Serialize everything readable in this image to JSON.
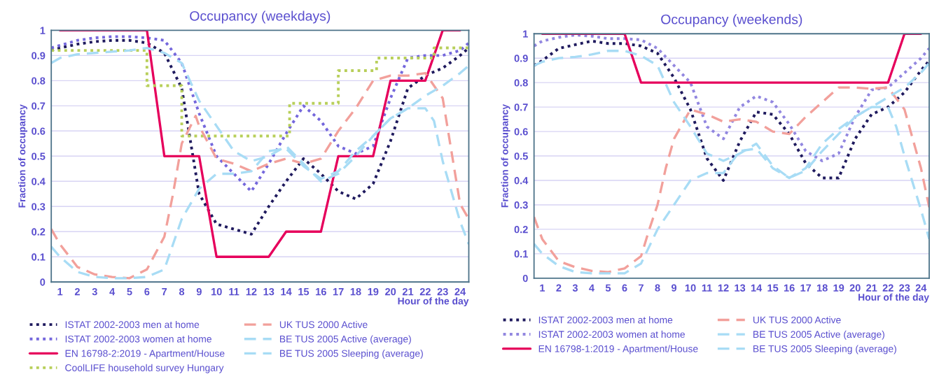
{
  "chart_data": [
    {
      "type": "line",
      "title": "Occupancy (weekdays)",
      "xlabel": "Hour of the day",
      "ylabel": "Fraction of occupancy",
      "xlim": [
        0.5,
        24.5
      ],
      "xticks": [
        1,
        2,
        3,
        4,
        5,
        6,
        7,
        8,
        9,
        10,
        11,
        12,
        13,
        14,
        15,
        16,
        17,
        18,
        19,
        20,
        21,
        22,
        23,
        24
      ],
      "ylim": [
        0,
        1
      ],
      "yticks": [
        0,
        0.1,
        0.2,
        0.3,
        0.4,
        0.5,
        0.6,
        0.7,
        0.8,
        0.9,
        1
      ],
      "grid": "y",
      "legend": "bottom",
      "series": [
        {
          "name": "ISTAT 2002-2003 men at home",
          "color": "#1f1a5e",
          "line_style": "dotted",
          "x": [
            0.5,
            1,
            2,
            3,
            4,
            5,
            6,
            7,
            8,
            9,
            10,
            11,
            12,
            13,
            14,
            15,
            16,
            17,
            18,
            19,
            20,
            21,
            22,
            23,
            24,
            24.5
          ],
          "values": [
            0.92,
            0.93,
            0.945,
            0.955,
            0.96,
            0.96,
            0.95,
            0.91,
            0.77,
            0.35,
            0.23,
            0.21,
            0.19,
            0.3,
            0.4,
            0.49,
            0.43,
            0.36,
            0.33,
            0.39,
            0.56,
            0.77,
            0.82,
            0.85,
            0.9,
            0.93
          ]
        },
        {
          "name": "ISTAT 2002-2003 women at home",
          "color": "#7467dc",
          "line_style": "dotted",
          "x": [
            0.5,
            1,
            2,
            3,
            4,
            5,
            6,
            7,
            8,
            9,
            10,
            11,
            12,
            13,
            14,
            15,
            16,
            17,
            18,
            19,
            20,
            21,
            22,
            23,
            24,
            24.5
          ],
          "values": [
            0.93,
            0.94,
            0.96,
            0.97,
            0.975,
            0.975,
            0.97,
            0.96,
            0.87,
            0.67,
            0.5,
            0.43,
            0.36,
            0.47,
            0.59,
            0.7,
            0.64,
            0.54,
            0.51,
            0.54,
            0.73,
            0.89,
            0.9,
            0.9,
            0.92,
            0.95
          ]
        },
        {
          "name": "EN 16798-2:2019 - Apartment/House",
          "color": "#e6005c",
          "line_style": "solid",
          "x": [
            1,
            2,
            3,
            4,
            5,
            6,
            7,
            8,
            9,
            10,
            11,
            12,
            13,
            14,
            15,
            16,
            17,
            18,
            19,
            20,
            21,
            22,
            23,
            24
          ],
          "values": [
            1,
            1,
            1,
            1,
            1,
            1,
            0.5,
            0.5,
            0.5,
            0.1,
            0.1,
            0.1,
            0.1,
            0.2,
            0.2,
            0.2,
            0.5,
            0.5,
            0.5,
            0.8,
            0.8,
            0.8,
            1,
            1
          ]
        },
        {
          "name": "CoolLIFE household survey Hungary",
          "color": "#b8cf5a",
          "line_style": "dotted",
          "x": [
            0.5,
            6,
            6,
            8,
            8,
            14.2,
            14.2,
            17,
            17,
            19.2,
            19.2,
            22.5,
            22.5,
            24.5
          ],
          "values": [
            0.92,
            0.92,
            0.78,
            0.78,
            0.58,
            0.58,
            0.71,
            0.71,
            0.84,
            0.84,
            0.89,
            0.89,
            0.93,
            0.93
          ]
        },
        {
          "name": "UK TUS 2000 Active",
          "color": "#f2a09b",
          "line_style": "dashed",
          "x": [
            0.5,
            1,
            2,
            3,
            4,
            5,
            6,
            7,
            7.5,
            8,
            8.8,
            9,
            10,
            11,
            12,
            13,
            14,
            15,
            16,
            17,
            18,
            19,
            20,
            21,
            22,
            23,
            24,
            24.5
          ],
          "values": [
            0.21,
            0.15,
            0.06,
            0.03,
            0.02,
            0.015,
            0.05,
            0.18,
            0.35,
            0.55,
            0.66,
            0.62,
            0.49,
            0.47,
            0.44,
            0.47,
            0.49,
            0.47,
            0.49,
            0.6,
            0.69,
            0.8,
            0.82,
            0.82,
            0.83,
            0.73,
            0.31,
            0.25
          ]
        },
        {
          "name": "BE TUS 2005 Active (average)",
          "color": "#a8dcf5",
          "line_style": "dashed",
          "x": [
            0.5,
            1,
            2,
            3,
            4,
            5,
            6,
            7,
            8,
            9,
            10,
            11,
            12,
            13,
            14,
            15,
            16,
            17,
            18,
            19,
            20,
            21,
            22,
            22.5,
            23,
            24,
            24.5
          ],
          "values": [
            0.14,
            0.1,
            0.04,
            0.02,
            0.015,
            0.015,
            0.02,
            0.05,
            0.25,
            0.37,
            0.43,
            0.43,
            0.44,
            0.52,
            0.53,
            0.46,
            0.41,
            0.44,
            0.52,
            0.58,
            0.65,
            0.69,
            0.69,
            0.64,
            0.48,
            0.24,
            0.15
          ]
        },
        {
          "name": "BE TUS 2005 Sleeping (average)",
          "color": "#a8dcf5",
          "line_style": "dashed",
          "x": [
            0.5,
            1,
            2,
            3,
            4,
            5,
            6,
            7,
            8,
            9,
            10,
            11,
            12,
            13,
            14,
            15,
            16,
            17,
            18,
            19,
            20,
            21,
            22,
            23,
            24,
            24.5
          ],
          "values": [
            0.87,
            0.89,
            0.905,
            0.91,
            0.915,
            0.92,
            0.93,
            0.91,
            0.87,
            0.72,
            0.62,
            0.52,
            0.48,
            0.5,
            0.54,
            0.47,
            0.4,
            0.43,
            0.5,
            0.58,
            0.65,
            0.69,
            0.74,
            0.78,
            0.83,
            0.86
          ]
        }
      ]
    },
    {
      "type": "line",
      "title": "Occupancy (weekends)",
      "xlabel": "Hour of the day",
      "ylabel": "Fraction of occupancy",
      "xlim": [
        0.5,
        24.5
      ],
      "xticks": [
        1,
        2,
        3,
        4,
        5,
        6,
        7,
        8,
        9,
        10,
        11,
        12,
        13,
        14,
        15,
        16,
        17,
        18,
        19,
        20,
        21,
        22,
        23,
        24
      ],
      "ylim": [
        0,
        1
      ],
      "yticks": [
        0,
        0.1,
        0.2,
        0.3,
        0.4,
        0.5,
        0.6,
        0.7,
        0.8,
        0.9,
        1
      ],
      "grid": "y",
      "legend": "bottom",
      "series": [
        {
          "name": "ISTAT 2002-2003 men at home",
          "color": "#1f1a5e",
          "line_style": "dotted",
          "x": [
            0.5,
            1,
            2,
            3,
            4,
            5,
            6,
            7,
            8,
            9,
            10,
            11,
            12,
            13,
            14,
            15,
            16,
            17,
            18,
            19,
            20,
            21,
            22,
            23,
            24,
            24.5
          ],
          "values": [
            0.87,
            0.89,
            0.94,
            0.955,
            0.97,
            0.96,
            0.96,
            0.95,
            0.92,
            0.82,
            0.69,
            0.49,
            0.4,
            0.56,
            0.68,
            0.67,
            0.59,
            0.47,
            0.41,
            0.41,
            0.57,
            0.67,
            0.7,
            0.76,
            0.85,
            0.89
          ]
        },
        {
          "name": "ISTAT 2002-2003 women at home",
          "color": "#9287e0",
          "line_style": "dotted",
          "x": [
            0.5,
            1,
            2,
            3,
            4,
            5,
            6,
            7,
            8,
            9,
            10,
            11,
            12,
            13,
            14,
            15,
            16,
            17,
            18,
            19,
            20,
            21,
            22,
            23,
            24,
            24.5
          ],
          "values": [
            0.95,
            0.97,
            0.985,
            0.995,
            0.99,
            0.98,
            0.98,
            0.975,
            0.94,
            0.87,
            0.8,
            0.62,
            0.57,
            0.7,
            0.745,
            0.72,
            0.63,
            0.52,
            0.48,
            0.51,
            0.66,
            0.77,
            0.78,
            0.84,
            0.9,
            0.94
          ]
        },
        {
          "name": "EN 16798-1:2019 - Apartment/House",
          "color": "#e6005c",
          "line_style": "solid",
          "x": [
            1,
            2,
            3,
            4,
            5,
            6,
            7,
            8,
            9,
            10,
            11,
            12,
            13,
            14,
            15,
            16,
            17,
            18,
            19,
            20,
            21,
            22,
            23,
            24
          ],
          "values": [
            1,
            1,
            1,
            1,
            1,
            1,
            0.8,
            0.8,
            0.8,
            0.8,
            0.8,
            0.8,
            0.8,
            0.8,
            0.8,
            0.8,
            0.8,
            0.8,
            0.8,
            0.8,
            0.8,
            0.8,
            1,
            1
          ]
        },
        {
          "name": "UK TUS 2000 Active",
          "color": "#f2a09b",
          "line_style": "dashed",
          "x": [
            0.5,
            1,
            2,
            3,
            4,
            5,
            6,
            7,
            7.5,
            8,
            8.5,
            9,
            10,
            11,
            12,
            13,
            14,
            15,
            16,
            17,
            18,
            19,
            20,
            21,
            22,
            23,
            24,
            24.5
          ],
          "values": [
            0.25,
            0.16,
            0.07,
            0.045,
            0.03,
            0.025,
            0.04,
            0.09,
            0.2,
            0.3,
            0.45,
            0.57,
            0.69,
            0.67,
            0.64,
            0.65,
            0.64,
            0.6,
            0.59,
            0.66,
            0.72,
            0.78,
            0.78,
            0.775,
            0.78,
            0.69,
            0.45,
            0.29
          ]
        },
        {
          "name": "BE TUS 2005 Active (average)",
          "color": "#a8dcf5",
          "line_style": "dashed",
          "x": [
            0.5,
            1,
            2,
            3,
            4,
            5,
            6,
            7,
            8,
            9,
            10,
            11,
            12,
            13,
            14,
            15,
            16,
            17,
            18,
            19,
            20,
            21,
            22,
            22.5,
            23,
            24,
            24.5
          ],
          "values": [
            0.14,
            0.1,
            0.05,
            0.025,
            0.02,
            0.02,
            0.02,
            0.06,
            0.2,
            0.3,
            0.4,
            0.43,
            0.43,
            0.52,
            0.53,
            0.45,
            0.41,
            0.45,
            0.55,
            0.61,
            0.66,
            0.7,
            0.7,
            0.62,
            0.5,
            0.28,
            0.16
          ]
        },
        {
          "name": "BE TUS 2005 Sleeping (average)",
          "color": "#a8dcf5",
          "line_style": "dashed",
          "x": [
            0.5,
            1,
            2,
            3,
            4,
            5,
            6,
            7,
            8,
            9,
            10,
            11,
            12,
            13,
            14,
            15,
            16,
            17,
            18,
            19,
            20,
            21,
            22,
            23,
            24,
            24.5
          ],
          "values": [
            0.87,
            0.885,
            0.9,
            0.905,
            0.915,
            0.93,
            0.93,
            0.91,
            0.87,
            0.72,
            0.62,
            0.51,
            0.48,
            0.51,
            0.55,
            0.46,
            0.41,
            0.44,
            0.52,
            0.59,
            0.66,
            0.7,
            0.74,
            0.78,
            0.84,
            0.88
          ]
        }
      ]
    }
  ]
}
